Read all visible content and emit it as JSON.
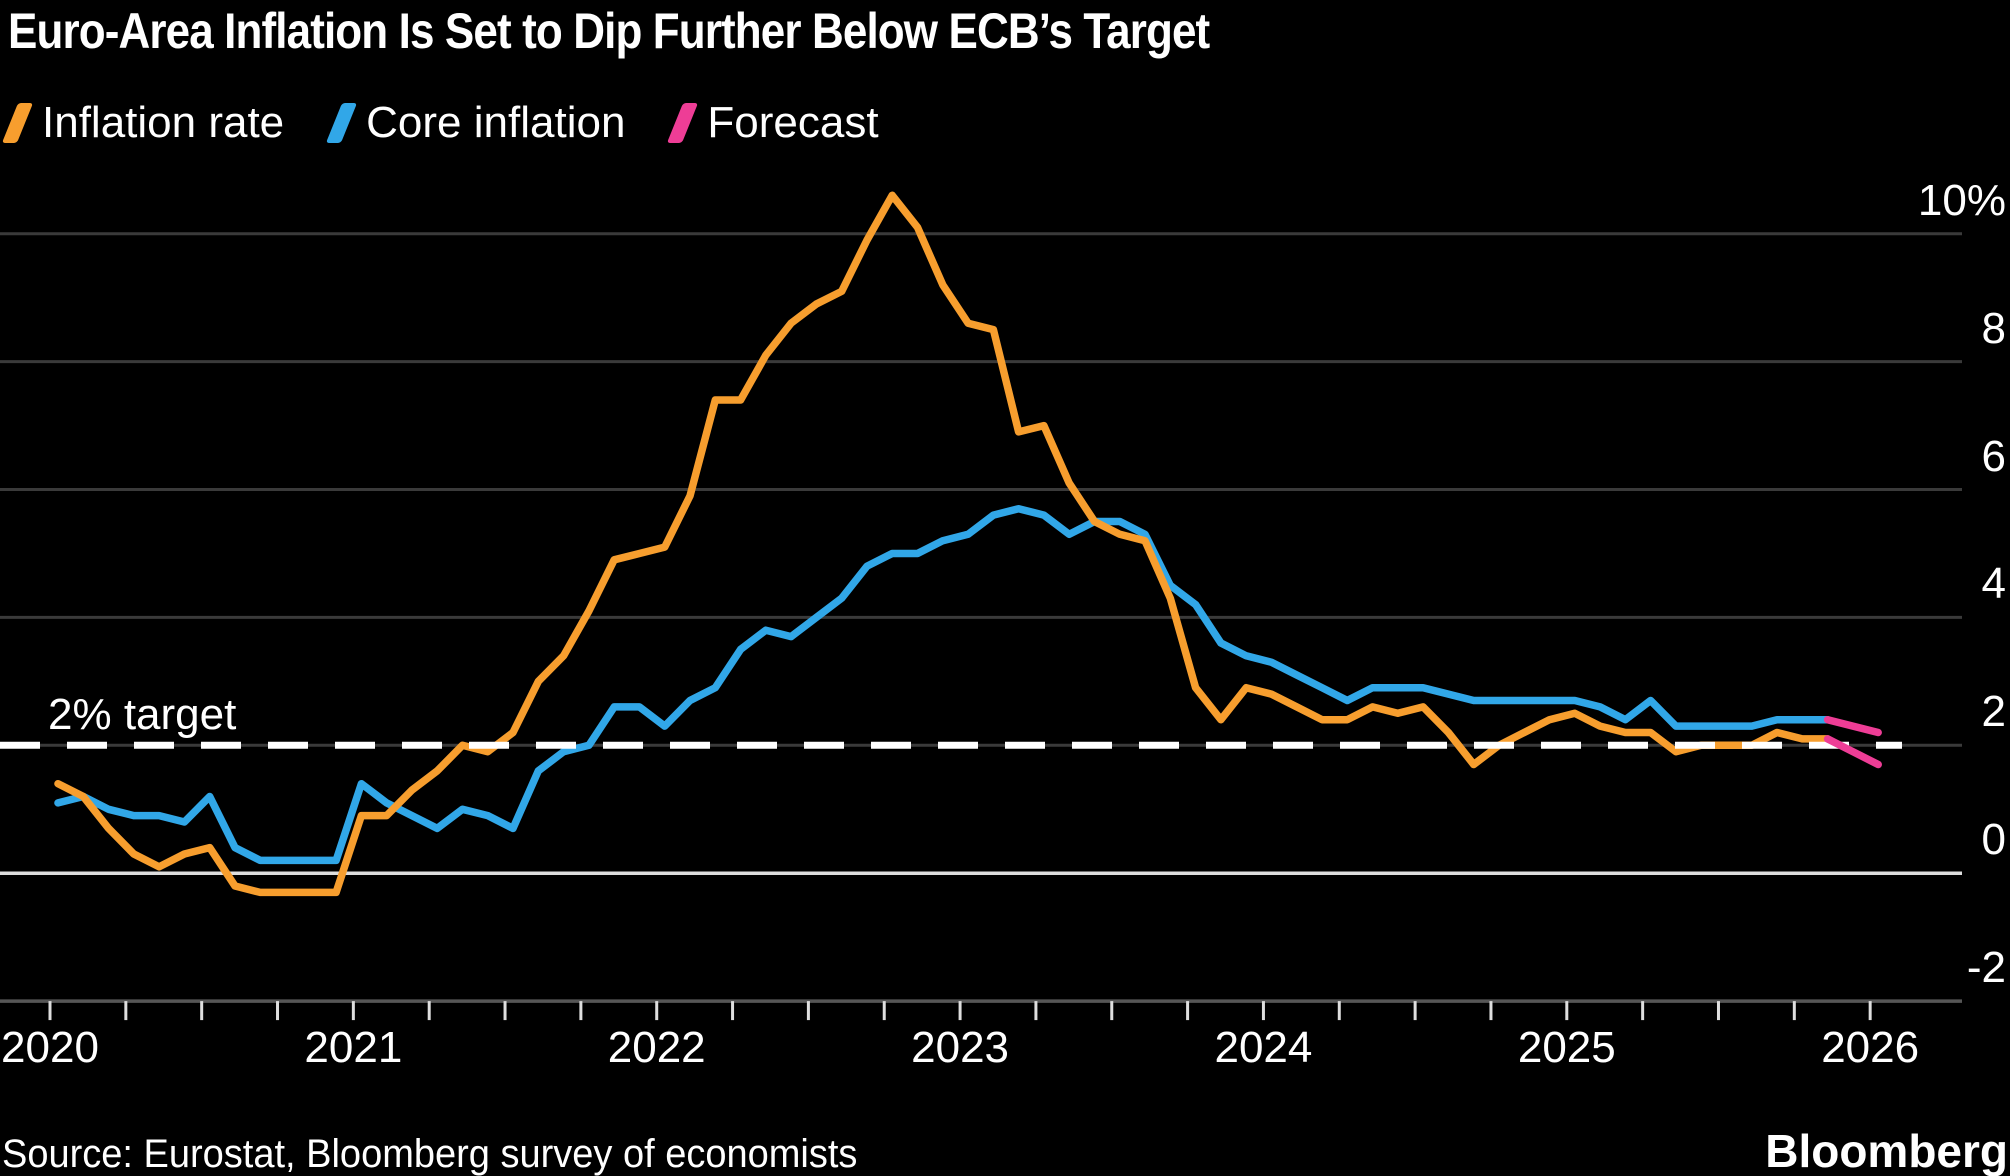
{
  "title": "Euro-Area Inflation Is Set to Dip Further Below ECB’s Target",
  "legend": [
    {
      "label": "Inflation rate",
      "color": "#F79E2E"
    },
    {
      "label": "Core inflation",
      "color": "#31A7E8"
    },
    {
      "label": "Forecast",
      "color": "#EE3D96"
    }
  ],
  "annotation": {
    "target_label": "2% target"
  },
  "footer": {
    "source": "Source: Eurostat, Bloomberg survey of economists",
    "brand": "Bloomberg"
  },
  "chart_data": {
    "type": "line",
    "title": "Euro-Area Inflation Is Set to Dip Further Below ECB’s Target",
    "unit": "percent, year-over-year",
    "x_start": "2020-01",
    "x_frequency": "monthly",
    "x_tick_labels": [
      "2020",
      "2021",
      "2022",
      "2023",
      "2024",
      "2025",
      "2026"
    ],
    "y_axis_side": "right",
    "y_tick_labels": [
      "10%",
      "8",
      "6",
      "4",
      "2",
      "0",
      "-2"
    ],
    "y_tick_values": [
      10,
      8,
      6,
      4,
      2,
      0,
      -2
    ],
    "ylim": [
      -2.85,
      11.05
    ],
    "grid": "horizontal",
    "legend_position": "top-left",
    "background": "#000000",
    "grid_color": "#3A3A3A",
    "zero_line_color": "#DEDEDE",
    "axis_line_color": "#565656",
    "target_line": {
      "value": 2,
      "style": "dashed",
      "color": "#FFFFFF",
      "label": "2% target"
    },
    "series": [
      {
        "name": "Inflation rate",
        "color": "#F79E2E",
        "style": "solid",
        "values": [
          1.4,
          1.2,
          0.7,
          0.3,
          0.1,
          0.3,
          0.4,
          -0.2,
          -0.3,
          -0.3,
          -0.3,
          -0.3,
          0.9,
          0.9,
          1.3,
          1.6,
          2.0,
          1.9,
          2.2,
          3.0,
          3.4,
          4.1,
          4.9,
          5.0,
          5.1,
          5.9,
          7.4,
          7.4,
          8.1,
          8.6,
          8.9,
          9.1,
          9.9,
          10.6,
          10.1,
          9.2,
          8.6,
          8.5,
          6.9,
          7.0,
          6.1,
          5.5,
          5.3,
          5.2,
          4.3,
          2.9,
          2.4,
          2.9,
          2.8,
          2.6,
          2.4,
          2.4,
          2.6,
          2.5,
          2.6,
          2.2,
          1.7,
          2.0,
          2.2,
          2.4,
          2.5,
          2.3,
          2.2,
          2.2,
          1.9,
          2.0,
          2.0,
          2.0,
          2.2,
          2.1,
          2.1
        ]
      },
      {
        "name": "Core inflation",
        "color": "#31A7E8",
        "style": "solid",
        "values": [
          1.1,
          1.2,
          1.0,
          0.9,
          0.9,
          0.8,
          1.2,
          0.4,
          0.2,
          0.2,
          0.2,
          0.2,
          1.4,
          1.1,
          0.9,
          0.7,
          1.0,
          0.9,
          0.7,
          1.6,
          1.9,
          2.0,
          2.6,
          2.6,
          2.3,
          2.7,
          2.9,
          3.5,
          3.8,
          3.7,
          4.0,
          4.3,
          4.8,
          5.0,
          5.0,
          5.2,
          5.3,
          5.6,
          5.7,
          5.6,
          5.3,
          5.5,
          5.5,
          5.3,
          4.5,
          4.2,
          3.6,
          3.4,
          3.3,
          3.1,
          2.9,
          2.7,
          2.9,
          2.9,
          2.9,
          2.8,
          2.7,
          2.7,
          2.7,
          2.7,
          2.7,
          2.6,
          2.4,
          2.7,
          2.3,
          2.3,
          2.3,
          2.3,
          2.4,
          2.4,
          2.4
        ]
      }
    ],
    "forecast_series": [
      {
        "name": "Inflation rate forecast",
        "base": "Inflation rate",
        "color": "#EE3D96",
        "months": [
          "2025-12",
          "2026-01"
        ],
        "values": [
          1.9,
          1.7
        ]
      },
      {
        "name": "Core inflation forecast",
        "base": "Core inflation",
        "color": "#EE3D96",
        "months": [
          "2025-12",
          "2026-01"
        ],
        "values": [
          2.3,
          2.2
        ]
      }
    ]
  }
}
